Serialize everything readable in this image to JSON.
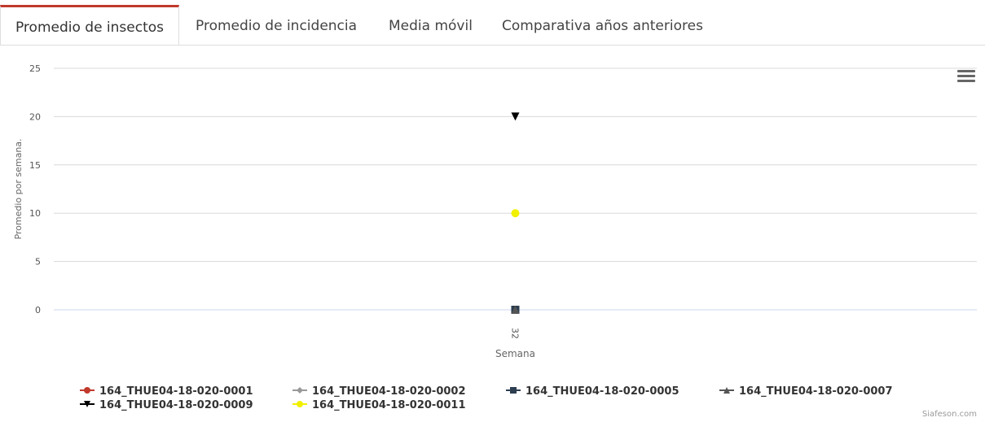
{
  "tabs": [
    {
      "label": "Promedio de insectos",
      "active": true
    },
    {
      "label": "Promedio de incidencia",
      "active": false
    },
    {
      "label": "Media móvil",
      "active": false
    },
    {
      "label": "Comparativa años anteriores",
      "active": false
    }
  ],
  "credit": "Siafeson.com",
  "menu_icon": "hamburger-menu-icon",
  "chart_data": {
    "type": "scatter",
    "categories": [
      "32"
    ],
    "xlabel": "Semana",
    "ylabel": "Promedio por semana.",
    "ylim": [
      0,
      25
    ],
    "yticks": [
      0,
      5,
      10,
      15,
      20,
      25
    ],
    "grid": true,
    "legend_position": "bottom",
    "series": [
      {
        "name": "164_THUE04-18-020-0001",
        "values": [
          0
        ],
        "color": "#c0392b",
        "marker": "circle"
      },
      {
        "name": "164_THUE04-18-020-0002",
        "values": [
          0
        ],
        "color": "#999999",
        "marker": "diamond"
      },
      {
        "name": "164_THUE04-18-020-0005",
        "values": [
          0
        ],
        "color": "#2c3e50",
        "marker": "square"
      },
      {
        "name": "164_THUE04-18-020-0007",
        "values": [
          0
        ],
        "color": "#555555",
        "marker": "triangle"
      },
      {
        "name": "164_THUE04-18-020-0009",
        "values": [
          20
        ],
        "color": "#000000",
        "marker": "triangle-down"
      },
      {
        "name": "164_THUE04-18-020-0011",
        "values": [
          10
        ],
        "color": "#f1f000",
        "marker": "circle"
      }
    ]
  }
}
